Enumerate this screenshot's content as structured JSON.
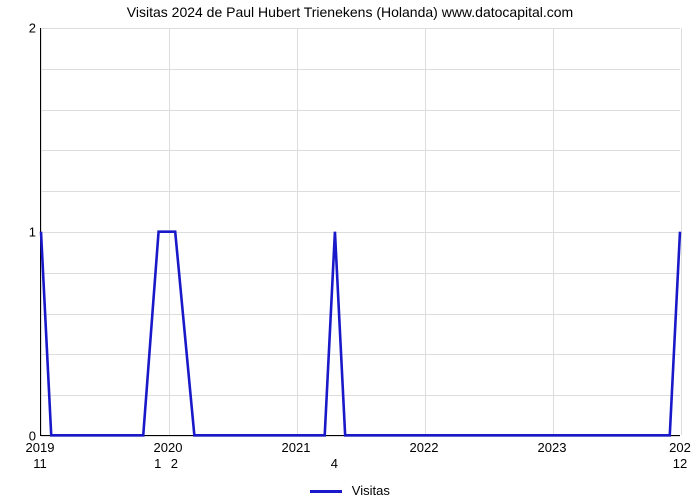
{
  "chart": {
    "type": "line",
    "title": "Visitas 2024 de Paul Hubert Trienekens (Holanda) www.datocapital.com",
    "title_fontsize": 14,
    "background_color": "#ffffff",
    "grid_color": "#dddddd",
    "axis_color": "#000000",
    "line_color": "#1919c9",
    "line_width": 2.6,
    "x_axis": {
      "min": 2019,
      "max": 2024,
      "ticks": [
        2019,
        2020,
        2021,
        2022,
        2023
      ],
      "right_label": "202"
    },
    "y_axis": {
      "min": 0,
      "max": 2,
      "ticks": [
        0,
        1,
        2
      ],
      "minor_steps": 4
    },
    "series_name": "Visitas",
    "data": [
      {
        "x": 2019.0,
        "y": 1.0,
        "label": "11"
      },
      {
        "x": 2019.08,
        "y": 0.0
      },
      {
        "x": 2019.8,
        "y": 0.0
      },
      {
        "x": 2019.92,
        "y": 1.0,
        "label": "1"
      },
      {
        "x": 2020.05,
        "y": 1.0,
        "label": "2"
      },
      {
        "x": 2020.2,
        "y": 0.0
      },
      {
        "x": 2021.22,
        "y": 0.0
      },
      {
        "x": 2021.3,
        "y": 1.0,
        "label": "4"
      },
      {
        "x": 2021.38,
        "y": 0.0
      },
      {
        "x": 2023.92,
        "y": 0.0
      },
      {
        "x": 2024.0,
        "y": 1.0,
        "label": "12"
      }
    ],
    "legend": {
      "label": "Visitas"
    }
  }
}
